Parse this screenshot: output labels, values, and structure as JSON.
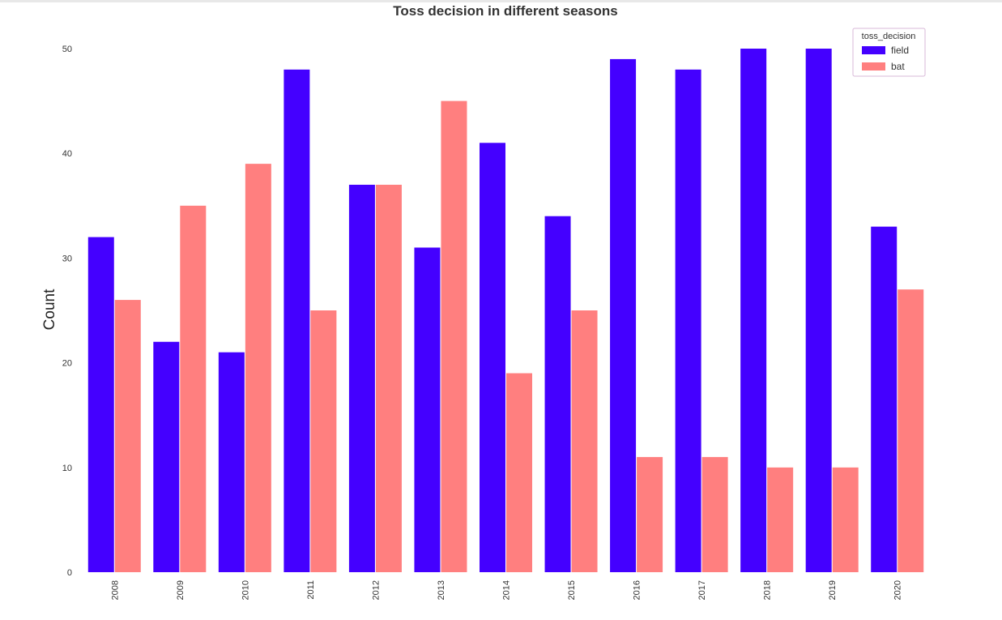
{
  "chart_data": {
    "type": "bar",
    "title": "Toss decision in different seasons",
    "xlabel": "",
    "ylabel": "Count",
    "categories": [
      "2008",
      "2009",
      "2010",
      "2011",
      "2012",
      "2013",
      "2014",
      "2015",
      "2016",
      "2017",
      "2018",
      "2019",
      "2020"
    ],
    "series": [
      {
        "name": "field",
        "color": "#4400ff",
        "values": [
          32,
          22,
          21,
          48,
          37,
          31,
          41,
          34,
          49,
          48,
          50,
          50,
          33
        ]
      },
      {
        "name": "bat",
        "color": "#ff7f7f",
        "values": [
          26,
          35,
          39,
          25,
          37,
          45,
          19,
          25,
          11,
          11,
          10,
          10,
          27
        ]
      }
    ],
    "ylim": [
      0,
      50
    ],
    "yticks": [
      0,
      10,
      20,
      30,
      40,
      50
    ],
    "grid": false,
    "legend": {
      "title": "toss_decision",
      "placement": "top-right"
    }
  }
}
